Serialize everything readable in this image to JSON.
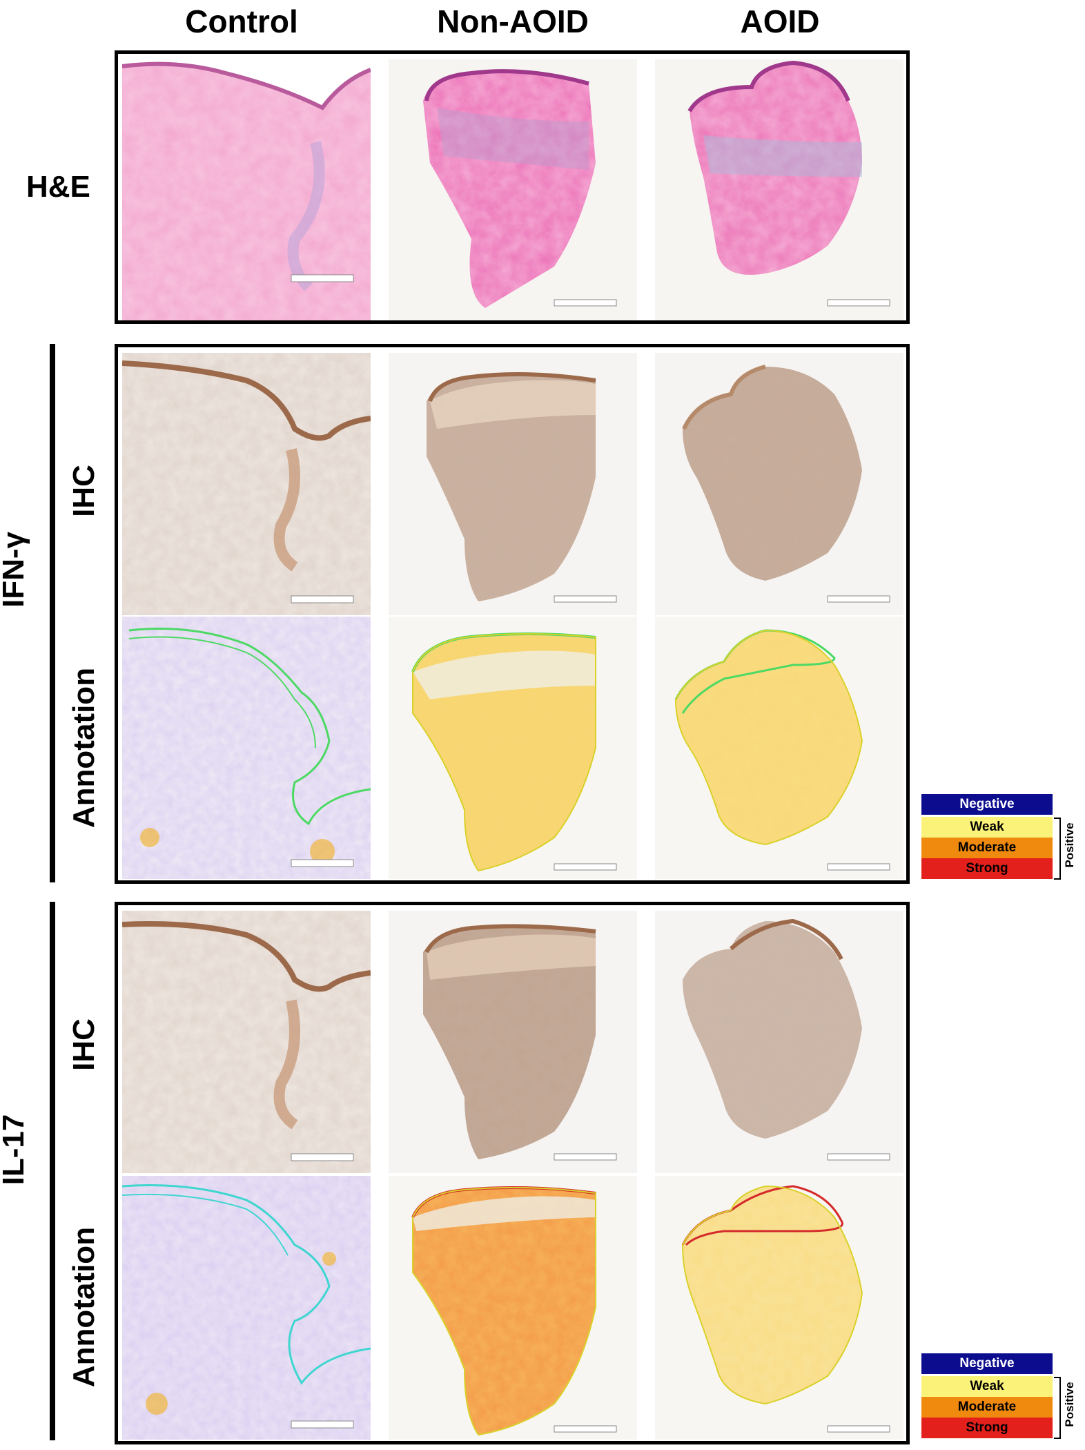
{
  "columns": [
    "Control",
    "Non-AOID",
    "AOID"
  ],
  "rows": {
    "he": "H&E",
    "ifn": "IFN-γ",
    "il17": "IL-17",
    "ihc": "IHC",
    "annotation": "Annotation"
  },
  "legend": {
    "negative": "Negative",
    "weak": "Weak",
    "moderate": "Moderate",
    "strong": "Strong",
    "positive": "Positive"
  },
  "colors": {
    "negative": "#0b0d8e",
    "weak": "#fbf27a",
    "moderate": "#f08a0e",
    "strong": "#e3201b",
    "he_tissue": "#ee8fc3",
    "ihc_tissue": "#d9c4b6",
    "annotation_green": "#4cd964",
    "annotation_cyan": "#3fd6d0",
    "annotation_red": "#d42a2a"
  }
}
